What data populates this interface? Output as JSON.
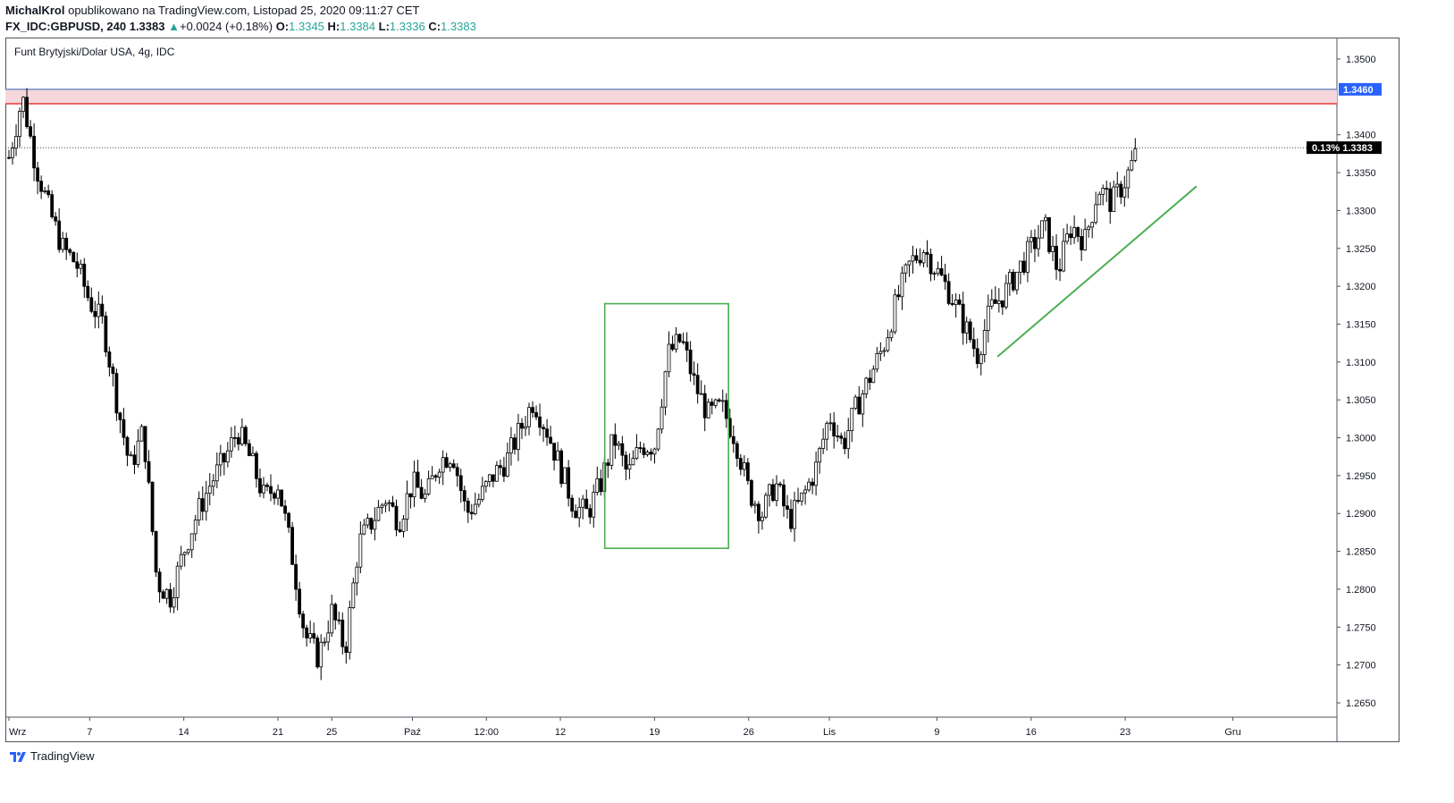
{
  "header": {
    "author": "MichalKrol",
    "published": "opublikowano na TradingView.com, Listopad 25, 2020 09:11:27 CET",
    "symbol": "FX_IDC:GBPUSD, 240",
    "price": "1.3383",
    "change_arrow": "▲",
    "change": "+0.0024 (+0.18%)",
    "o_label": "O:",
    "o": "1.3345",
    "h_label": "H:",
    "h": "1.3384",
    "l_label": "L:",
    "l": "1.3336",
    "c_label": "C:",
    "c": "1.3383"
  },
  "chart_title": "Funt Brytyjski/Dolar USA, 4g, IDC",
  "footer": {
    "brand": "TradingView",
    "logo_icon": "tradingview-logo-icon"
  },
  "colors": {
    "candle": "#000000",
    "resistance_line": "#e53935",
    "resistance_zone": "#f6d7dc",
    "top_line": "#5b7db8",
    "green": "#4caf50",
    "badge_blue": "#2962ff",
    "badge_dark": "#000000"
  },
  "chart_data": {
    "type": "candlestick",
    "y_range": [
      1.262,
      1.354
    ],
    "y_ticks": [
      "1.3500",
      "1.3400",
      "1.3350",
      "1.3300",
      "1.3250",
      "1.3200",
      "1.3150",
      "1.3100",
      "1.3050",
      "1.3000",
      "1.2950",
      "1.2900",
      "1.2850",
      "1.2800",
      "1.2750",
      "1.2700",
      "1.2650"
    ],
    "x_labels": [
      {
        "label": "Wrz",
        "day": 0
      },
      {
        "label": "7",
        "day": 6
      },
      {
        "label": "14",
        "day": 13
      },
      {
        "label": "21",
        "day": 20
      },
      {
        "label": "25",
        "day": 24
      },
      {
        "label": "Paź",
        "day": 30
      },
      {
        "label": "12:00",
        "day": 35.5
      },
      {
        "label": "12",
        "day": 41
      },
      {
        "label": "19",
        "day": 48
      },
      {
        "label": "26",
        "day": 55
      },
      {
        "label": "Lis",
        "day": 61
      },
      {
        "label": "9",
        "day": 69
      },
      {
        "label": "16",
        "day": 76
      },
      {
        "label": "23",
        "day": 83
      },
      {
        "label": "Gru",
        "day": 91
      }
    ],
    "x_range_days": [
      0,
      94
    ],
    "close_path": [
      [
        0,
        1.337
      ],
      [
        1,
        1.345
      ],
      [
        2,
        1.336
      ],
      [
        3,
        1.33
      ],
      [
        4,
        1.325
      ],
      [
        5,
        1.323
      ],
      [
        6,
        1.318
      ],
      [
        7,
        1.315
      ],
      [
        8,
        1.305
      ],
      [
        9,
        1.296
      ],
      [
        10,
        1.301
      ],
      [
        11,
        1.281
      ],
      [
        12,
        1.279
      ],
      [
        13,
        1.285
      ],
      [
        14,
        1.29
      ],
      [
        15,
        1.294
      ],
      [
        16,
        1.297
      ],
      [
        17,
        1.301
      ],
      [
        18,
        1.297
      ],
      [
        19,
        1.292
      ],
      [
        20,
        1.294
      ],
      [
        21,
        1.285
      ],
      [
        22,
        1.274
      ],
      [
        23,
        1.271
      ],
      [
        24,
        1.277
      ],
      [
        25,
        1.272
      ],
      [
        26,
        1.286
      ],
      [
        27,
        1.289
      ],
      [
        28,
        1.292
      ],
      [
        29,
        1.289
      ],
      [
        30,
        1.294
      ],
      [
        31,
        1.292
      ],
      [
        32,
        1.297
      ],
      [
        33,
        1.298
      ],
      [
        34,
        1.29
      ],
      [
        35,
        1.292
      ],
      [
        36,
        1.295
      ],
      [
        37,
        1.297
      ],
      [
        38,
        1.301
      ],
      [
        39,
        1.305
      ],
      [
        40,
        1.301
      ],
      [
        41,
        1.296
      ],
      [
        42,
        1.291
      ],
      [
        43,
        1.29
      ],
      [
        44,
        1.294
      ],
      [
        45,
        1.3
      ],
      [
        46,
        1.295
      ],
      [
        47,
        1.299
      ],
      [
        48,
        1.299
      ],
      [
        49,
        1.311
      ],
      [
        50,
        1.313
      ],
      [
        51,
        1.307
      ],
      [
        52,
        1.303
      ],
      [
        53,
        1.304
      ],
      [
        54,
        1.3
      ],
      [
        55,
        1.293
      ],
      [
        56,
        1.29
      ],
      [
        57,
        1.294
      ],
      [
        58,
        1.289
      ],
      [
        59,
        1.292
      ],
      [
        60,
        1.296
      ],
      [
        61,
        1.303
      ],
      [
        62,
        1.299
      ],
      [
        63,
        1.304
      ],
      [
        64,
        1.308
      ],
      [
        65,
        1.312
      ],
      [
        66,
        1.318
      ],
      [
        67,
        1.323
      ],
      [
        68,
        1.325
      ],
      [
        69,
        1.322
      ],
      [
        70,
        1.319
      ],
      [
        71,
        1.315
      ],
      [
        72,
        1.311
      ],
      [
        73,
        1.317
      ],
      [
        74,
        1.319
      ],
      [
        75,
        1.322
      ],
      [
        76,
        1.325
      ],
      [
        77,
        1.328
      ],
      [
        78,
        1.322
      ],
      [
        79,
        1.328
      ],
      [
        80,
        1.326
      ],
      [
        81,
        1.333
      ],
      [
        82,
        1.331
      ],
      [
        83,
        1.334
      ],
      [
        84,
        1.3383
      ]
    ],
    "resistance_zone": [
      1.3441,
      1.346
    ],
    "horizontal_levels": [
      1.346,
      1.3441
    ],
    "current_price_line": 1.3383,
    "price_badges": [
      {
        "text": "1.3460",
        "value": 1.346,
        "style": "blue"
      },
      {
        "text": "0.13%  1.3383",
        "value": 1.3383,
        "style": "dark"
      }
    ],
    "box": {
      "day_start": 44.3,
      "day_end": 53.5,
      "price_top": 1.3177,
      "price_bottom": 1.2854
    },
    "trendline": {
      "from": [
        73.5,
        1.3107
      ],
      "to": [
        88.3,
        1.3332
      ]
    }
  }
}
